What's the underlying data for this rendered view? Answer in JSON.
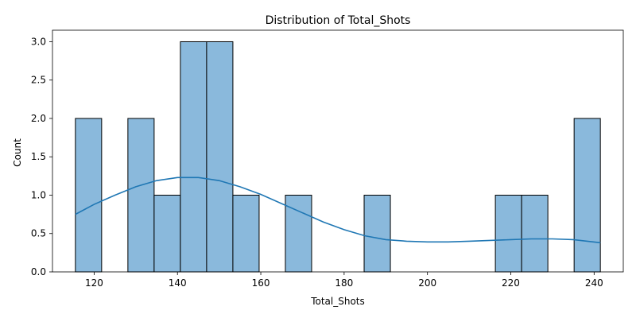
{
  "chart_data": {
    "type": "bar",
    "title": "Distribution of Total_Shots",
    "xlabel": "Total_Shots",
    "ylabel": "Count",
    "xlim": [
      110,
      247
    ],
    "ylim": [
      0,
      3.15
    ],
    "x_ticks": [
      120,
      140,
      160,
      180,
      200,
      220,
      240
    ],
    "y_ticks": [
      "0.0",
      "0.5",
      "1.0",
      "1.5",
      "2.0",
      "2.5",
      "3.0"
    ],
    "grid": false,
    "bar_color": "#8ab9dc",
    "edge_color": "#000000",
    "kde_color": "#1f77b4",
    "bins": [
      {
        "start": 115.5,
        "end": 121.8,
        "count": 2
      },
      {
        "start": 121.8,
        "end": 128.1,
        "count": 0
      },
      {
        "start": 128.1,
        "end": 134.4,
        "count": 2
      },
      {
        "start": 134.4,
        "end": 140.7,
        "count": 1
      },
      {
        "start": 140.7,
        "end": 147.0,
        "count": 3
      },
      {
        "start": 147.0,
        "end": 153.3,
        "count": 3
      },
      {
        "start": 153.3,
        "end": 159.6,
        "count": 1
      },
      {
        "start": 159.6,
        "end": 165.9,
        "count": 0
      },
      {
        "start": 165.9,
        "end": 172.2,
        "count": 1
      },
      {
        "start": 172.2,
        "end": 178.5,
        "count": 0
      },
      {
        "start": 178.5,
        "end": 184.8,
        "count": 0
      },
      {
        "start": 184.8,
        "end": 191.1,
        "count": 1
      },
      {
        "start": 191.1,
        "end": 197.4,
        "count": 0
      },
      {
        "start": 197.4,
        "end": 203.7,
        "count": 0
      },
      {
        "start": 203.7,
        "end": 210.0,
        "count": 0
      },
      {
        "start": 210.0,
        "end": 216.3,
        "count": 0
      },
      {
        "start": 216.3,
        "end": 222.6,
        "count": 1
      },
      {
        "start": 222.6,
        "end": 228.9,
        "count": 1
      },
      {
        "start": 228.9,
        "end": 235.2,
        "count": 0
      },
      {
        "start": 235.2,
        "end": 241.5,
        "count": 2
      }
    ],
    "kde": {
      "x": [
        115.5,
        120,
        125,
        130,
        135,
        140,
        145,
        150,
        155,
        160,
        165,
        170,
        175,
        180,
        185,
        190,
        195,
        200,
        205,
        210,
        215,
        220,
        225,
        230,
        235,
        241.5
      ],
      "y": [
        0.75,
        0.88,
        1.0,
        1.11,
        1.19,
        1.23,
        1.23,
        1.19,
        1.11,
        1.01,
        0.89,
        0.77,
        0.65,
        0.55,
        0.47,
        0.42,
        0.4,
        0.39,
        0.39,
        0.4,
        0.41,
        0.42,
        0.43,
        0.43,
        0.42,
        0.38
      ]
    }
  }
}
